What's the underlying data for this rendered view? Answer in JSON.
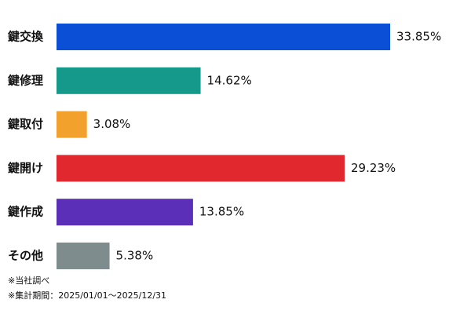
{
  "chart_data": {
    "type": "bar",
    "orientation": "horizontal",
    "categories": [
      "鍵交換",
      "鍵修理",
      "鍵取付",
      "鍵開け",
      "鍵作成",
      "その他"
    ],
    "values": [
      33.85,
      14.62,
      3.08,
      29.23,
      13.85,
      5.38
    ],
    "value_labels": [
      "33.85%",
      "14.62%",
      "3.08%",
      "29.23%",
      "13.85%",
      "5.38%"
    ],
    "colors": [
      "#0a4fd6",
      "#14998a",
      "#f2a22c",
      "#e0282e",
      "#5b2fb8",
      "#7f8c8d"
    ],
    "notes": [
      "※当社調べ",
      "※集計期間：2025/01/01～2025/12/31"
    ]
  }
}
